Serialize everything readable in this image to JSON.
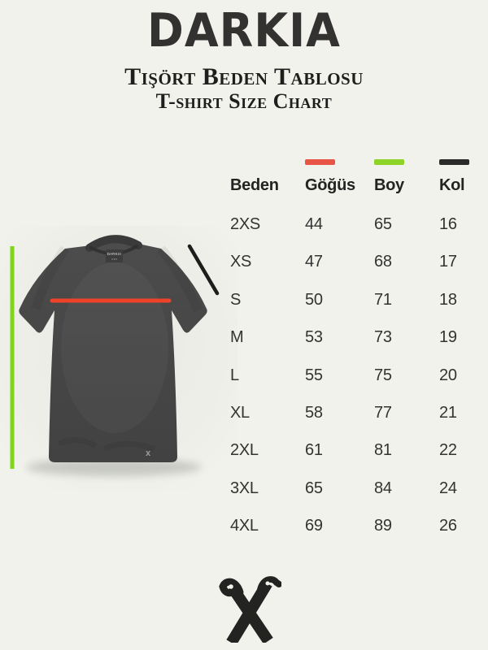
{
  "page": {
    "background": "#f1f2ec"
  },
  "header": {
    "brand": "DARKIA",
    "subtitle_tr": "Tişört Beden Tablosu",
    "subtitle_en": "T-shirt Size Chart"
  },
  "table": {
    "columns": [
      {
        "label": "Beden",
        "color": null
      },
      {
        "label": "Göğüs",
        "color": "#e85547"
      },
      {
        "label": "Boy",
        "color": "#8dd226"
      },
      {
        "label": "Kol",
        "color": "#2a2a28"
      }
    ]
  },
  "chart_data": {
    "type": "table",
    "title": "Tişört Beden Tablosu / T-shirt Size Chart",
    "columns": [
      "Beden",
      "Göğüs",
      "Boy",
      "Kol"
    ],
    "rows": [
      [
        "2XS",
        "44",
        "65",
        "16"
      ],
      [
        "XS",
        "47",
        "68",
        "17"
      ],
      [
        "S",
        "50",
        "71",
        "18"
      ],
      [
        "M",
        "53",
        "73",
        "19"
      ],
      [
        "L",
        "55",
        "75",
        "20"
      ],
      [
        "XL",
        "58",
        "77",
        "21"
      ],
      [
        "2XL",
        "61",
        "81",
        "22"
      ],
      [
        "3XL",
        "65",
        "84",
        "24"
      ],
      [
        "4XL",
        "69",
        "89",
        "26"
      ]
    ],
    "legend": [
      {
        "column": "Göğüs",
        "meaning": "chest measurement line",
        "color": "#e85547"
      },
      {
        "column": "Boy",
        "meaning": "length measurement line",
        "color": "#8dd226"
      },
      {
        "column": "Kol",
        "meaning": "sleeve measurement line",
        "color": "#2a2a28"
      }
    ],
    "units_note": ""
  },
  "tshirt": {
    "neck_label": "DARKIA",
    "hem_mark": "x",
    "shirt_color": "#474747",
    "lines": {
      "chest": "#ee4329",
      "length": "#80d518",
      "sleeve": "#1d1d1c"
    }
  },
  "footer": {
    "logo": "crossed-scythes-x-mark",
    "logo_color": "#232322"
  }
}
